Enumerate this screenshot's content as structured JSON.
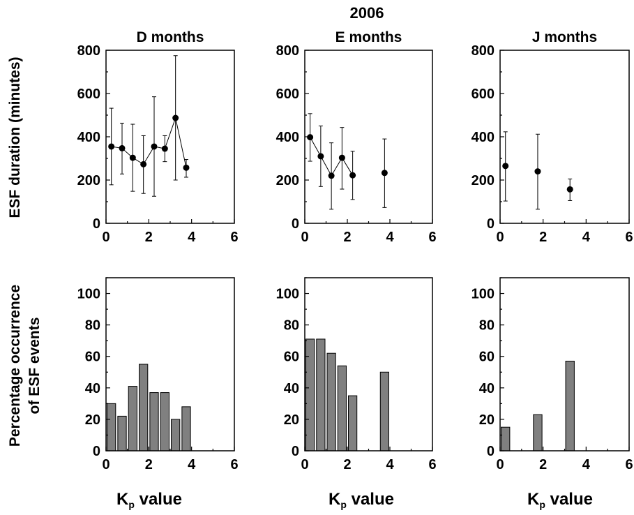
{
  "figure": {
    "title": "2006",
    "ylabel_top": "ESF duration (minutes)",
    "ylabel_bottom_line1": "Percentage occurrence",
    "ylabel_bottom_line2": "of ESF events",
    "xlabel_main": "K",
    "xlabel_sub": "p",
    "xlabel_rest": " value"
  },
  "chart_data": [
    {
      "type": "scatter",
      "panel": "top-left",
      "title": "D months",
      "xlim": [
        0,
        6
      ],
      "ylim": [
        0,
        800
      ],
      "xticks": [
        0,
        2,
        4,
        6
      ],
      "yticks": [
        0,
        200,
        400,
        600,
        800
      ],
      "connected": true,
      "x": [
        0.25,
        0.75,
        1.25,
        1.75,
        2.25,
        2.75,
        3.25,
        3.75
      ],
      "y": [
        355,
        347,
        303,
        273,
        355,
        345,
        487,
        257
      ],
      "err_low": [
        178,
        228,
        148,
        138,
        125,
        285,
        200,
        213
      ],
      "err_high": [
        532,
        463,
        458,
        405,
        585,
        405,
        775,
        295
      ]
    },
    {
      "type": "scatter",
      "panel": "top-middle",
      "title": "E months",
      "xlim": [
        0,
        6
      ],
      "ylim": [
        0,
        800
      ],
      "xticks": [
        0,
        2,
        4,
        6
      ],
      "yticks": [
        0,
        200,
        400,
        600,
        800
      ],
      "connected": true,
      "x": [
        0.25,
        0.75,
        1.25,
        1.75,
        2.25,
        3.75
      ],
      "y": [
        398,
        310,
        220,
        303,
        222,
        233
      ],
      "err_low": [
        287,
        170,
        65,
        158,
        110,
        73
      ],
      "err_high": [
        507,
        450,
        372,
        443,
        333,
        390
      ],
      "break_before_index": 5
    },
    {
      "type": "scatter",
      "panel": "top-right",
      "title": "J months",
      "xlim": [
        0,
        6
      ],
      "ylim": [
        0,
        800
      ],
      "xticks": [
        0,
        2,
        4,
        6
      ],
      "yticks": [
        0,
        200,
        400,
        600,
        800
      ],
      "connected": false,
      "x": [
        0.25,
        1.75,
        3.25
      ],
      "y": [
        265,
        240,
        157
      ],
      "err_low": [
        103,
        65,
        105
      ],
      "err_high": [
        423,
        412,
        205
      ]
    },
    {
      "type": "bar",
      "panel": "bottom-left",
      "xlim": [
        0,
        6
      ],
      "ylim": [
        0,
        110
      ],
      "xticks": [
        0,
        2,
        4,
        6
      ],
      "yticks": [
        0,
        20,
        40,
        60,
        80,
        100
      ],
      "bar_width": 0.4,
      "x": [
        0.25,
        0.75,
        1.25,
        1.75,
        2.25,
        2.75,
        3.25,
        3.75
      ],
      "values": [
        30,
        22,
        41,
        55,
        37,
        37,
        20,
        28
      ]
    },
    {
      "type": "bar",
      "panel": "bottom-middle",
      "xlim": [
        0,
        6
      ],
      "ylim": [
        0,
        110
      ],
      "xticks": [
        0,
        2,
        4,
        6
      ],
      "yticks": [
        0,
        20,
        40,
        60,
        80,
        100
      ],
      "bar_width": 0.4,
      "x": [
        0.25,
        0.75,
        1.25,
        1.75,
        2.25,
        3.75
      ],
      "values": [
        71,
        71,
        62,
        54,
        35,
        50
      ]
    },
    {
      "type": "bar",
      "panel": "bottom-right",
      "xlim": [
        0,
        6
      ],
      "ylim": [
        0,
        110
      ],
      "xticks": [
        0,
        2,
        4,
        6
      ],
      "yticks": [
        0,
        20,
        40,
        60,
        80,
        100
      ],
      "bar_width": 0.4,
      "x": [
        0.25,
        1.75,
        3.25
      ],
      "values": [
        15,
        23,
        57
      ]
    }
  ],
  "colors": {
    "bar_fill": "#808080",
    "ink": "#000000"
  }
}
